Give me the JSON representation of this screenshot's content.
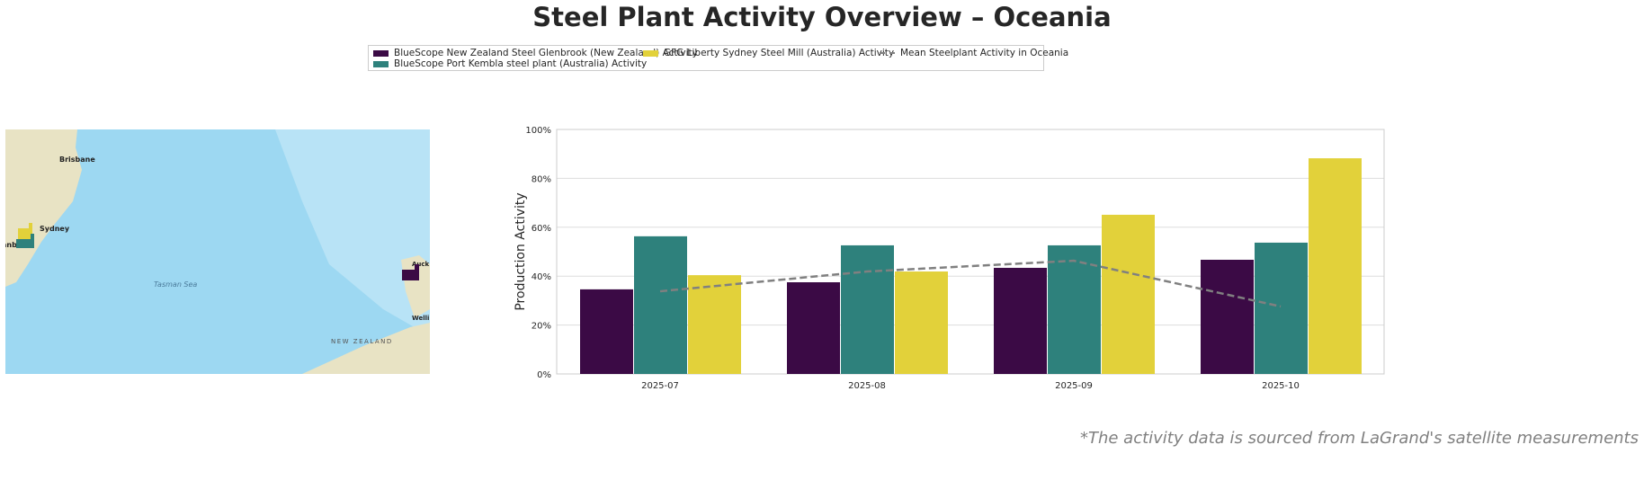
{
  "title": "Steel Plant Activity Overview – Oceania",
  "footnote": "*The activity data is sourced from LaGrand's satellite measurements",
  "map": {
    "labels": {
      "brisbane": "Brisbane",
      "sydney": "Sydney",
      "wollongong": "anb",
      "tasman": "Tasman   Sea",
      "auckland": "Auck",
      "wellington": "Welli",
      "nz": "NEW ZEALAND"
    },
    "icon": "factory-icon"
  },
  "chart_data": {
    "type": "bar",
    "categories": [
      "2025-07",
      "2025-08",
      "2025-09",
      "2025-10"
    ],
    "ylabel": "Production Activity",
    "xlabel": "",
    "ylim": [
      0,
      100
    ],
    "yticks": [
      "0%",
      "20%",
      "40%",
      "60%",
      "80%",
      "100%"
    ],
    "grid": true,
    "legend_placement": "top-center",
    "series": [
      {
        "name": "BlueScope New Zealand Steel Glenbrook (New Zealand) Activity",
        "color": "#3b0a45",
        "values": [
          34.6,
          37.5,
          43.4,
          46.7
        ]
      },
      {
        "name": "BlueScope Port Kembla steel plant (Australia) Activity",
        "color": "#2e817c",
        "values": [
          56.3,
          52.6,
          52.6,
          53.7
        ]
      },
      {
        "name": "GFG Liberty Sydney Steel Mill (Australia) Activity",
        "color": "#e2d13a",
        "values": [
          40.4,
          41.9,
          65.1,
          88.2
        ]
      }
    ],
    "line": {
      "name": "Mean Steelplant Activity in Oceania",
      "color": "#808080",
      "style": "dashed",
      "values": [
        33.8,
        41.9,
        46.3,
        27.6
      ]
    }
  }
}
